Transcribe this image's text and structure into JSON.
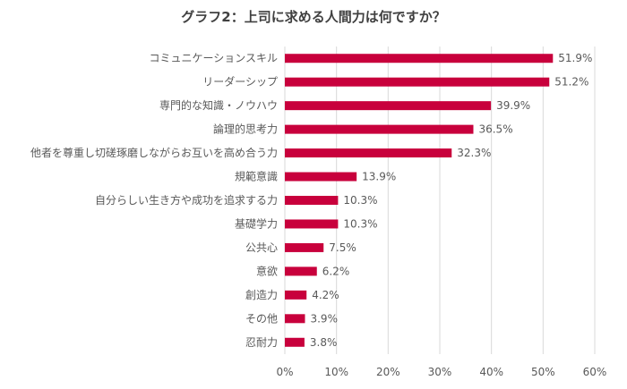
{
  "chart_data": {
    "type": "bar",
    "orientation": "horizontal",
    "title": "グラフ2：上司に求める人間力は何ですか？",
    "categories": [
      "コミュニケーションスキル",
      "リーダーシップ",
      "専門的な知識・ノウハウ",
      "論理的思考力",
      "他者を尊重し切磋琢磨しながらお互いを高め合う力",
      "規範意識",
      "自分らしい生き方や成功を追求する力",
      "基礎学力",
      "公共心",
      "意欲",
      "創造力",
      "その他",
      "忍耐力"
    ],
    "values": [
      51.9,
      51.2,
      39.9,
      36.5,
      32.3,
      13.9,
      10.3,
      10.3,
      7.5,
      6.2,
      4.2,
      3.9,
      3.8
    ],
    "data_labels": [
      "51.9%",
      "51.2%",
      "39.9%",
      "36.5%",
      "32.3%",
      "13.9%",
      "10.3%",
      "10.3%",
      "7.5%",
      "6.2%",
      "4.2%",
      "3.9%",
      "3.8%"
    ],
    "xlim": [
      0,
      60
    ],
    "x_ticks": [
      0,
      10,
      20,
      30,
      40,
      50,
      60
    ],
    "x_tick_labels": [
      "0%",
      "10%",
      "20%",
      "30%",
      "40%",
      "50%",
      "60%"
    ],
    "grid": "vertical",
    "legend": "none",
    "colors": {
      "bar": "#c8003c",
      "grid": "#d9d9d9",
      "text": "#595959"
    }
  }
}
